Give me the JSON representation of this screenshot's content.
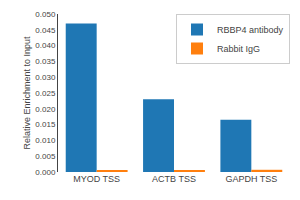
{
  "chart_data": {
    "type": "bar",
    "categories": [
      "MYOD TSS",
      "ACTB TSS",
      "GAPDH TSS"
    ],
    "series": [
      {
        "name": "RBBP4 antibody",
        "values": [
          0.047,
          0.023,
          0.0165
        ]
      },
      {
        "name": "Rabbit IgG",
        "values": [
          0.0006,
          0.0005,
          0.0007
        ]
      }
    ],
    "ylabel": "Relative Enrichment to Input",
    "ylim": [
      0.0,
      0.05
    ],
    "yticks": [
      {
        "value": 0.0,
        "label": "0.000"
      },
      {
        "value": 0.005,
        "label": "0.005"
      },
      {
        "value": 0.01,
        "label": "0.010"
      },
      {
        "value": 0.015,
        "label": "0.015"
      },
      {
        "value": 0.02,
        "label": "0.020"
      },
      {
        "value": 0.025,
        "label": "0.025"
      },
      {
        "value": 0.03,
        "label": "0.030"
      },
      {
        "value": 0.035,
        "label": "0.035"
      },
      {
        "value": 0.04,
        "label": "0.040"
      },
      {
        "value": 0.045,
        "label": "0.045"
      },
      {
        "value": 0.05,
        "label": "0.050"
      }
    ],
    "grid": false,
    "legend": "upper right"
  }
}
